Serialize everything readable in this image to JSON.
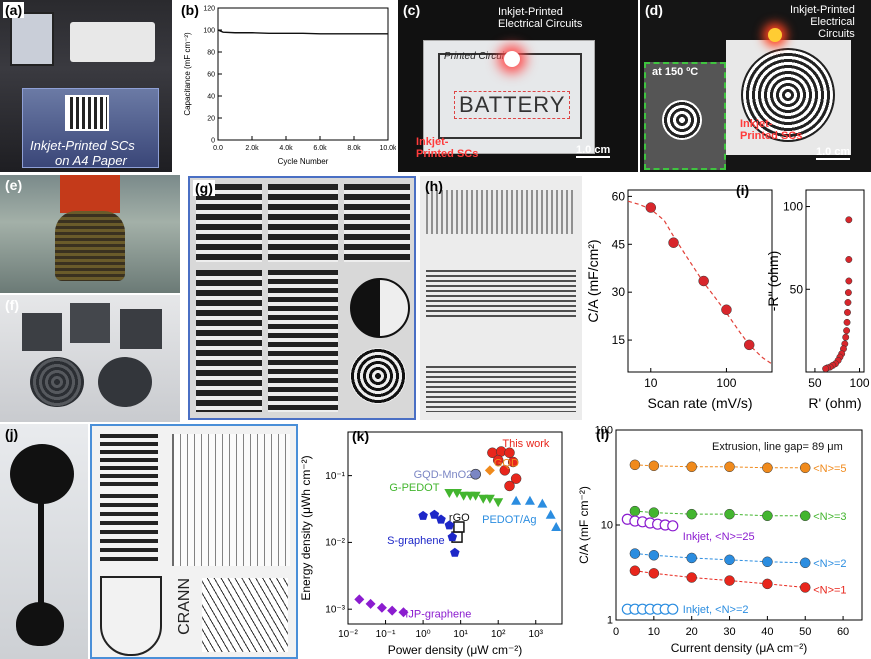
{
  "labels": {
    "a": "(a)",
    "b": "(b)",
    "c": "(c)",
    "d": "(d)",
    "e": "(e)",
    "f": "(f)",
    "g": "(g)",
    "h": "(h)",
    "i": "(i)",
    "j": "(j)",
    "k": "(k)",
    "l": "(l)"
  },
  "panel_a": {
    "caption_line1": "Inkjet-Printed SCs",
    "caption_line2": "on A4 Paper"
  },
  "panel_c": {
    "circuit_label": "Inkjet-Printed\nElectrical Circuits",
    "sc_label": "Inkjet-\nPrinted SCs",
    "battery_text": "BATTERY",
    "printed_circuit_text": "Printed Circuit",
    "scale": "1.0 cm"
  },
  "panel_d": {
    "circuit_label": "Inkjet-Printed\nElectrical\nCircuits",
    "temp_label": "at 150 ºC",
    "sc_label": "Inkjet-\nPrinted SCs",
    "scale": "1.0 cm"
  },
  "panel_j": {
    "crann": "CRANN"
  },
  "chart_data": [
    {
      "id": "b",
      "type": "line",
      "xlabel": "Cycle Number",
      "ylabel": "Capacitance (mF cm⁻²)",
      "xlim": [
        0,
        10000
      ],
      "ylim": [
        0,
        120
      ],
      "xticks": [
        0,
        2000,
        4000,
        6000,
        8000,
        10000
      ],
      "xtick_labels": [
        "0.0",
        "2.0k",
        "4.0k",
        "6.0k",
        "8.0k",
        "10.0k"
      ],
      "yticks": [
        0,
        20,
        40,
        60,
        80,
        100,
        120
      ],
      "ytick_labels": [
        "0",
        "20",
        "40",
        "60",
        "80",
        "100",
        "120"
      ],
      "series": [
        {
          "x": [
            0,
            300,
            1000,
            2000,
            3000,
            4000,
            5000,
            6000,
            7000,
            8000,
            9000,
            10000
          ],
          "y": [
            100,
            98,
            97.5,
            97.5,
            97,
            97,
            97,
            96.5,
            96.5,
            96.5,
            96.5,
            96.5
          ]
        }
      ]
    },
    {
      "id": "i_left",
      "type": "scatter",
      "xlabel": "Scan rate (mV/s)",
      "ylabel": "C/A (mF/cm²)",
      "xscale": "log",
      "xlim": [
        5,
        400
      ],
      "ylim": [
        5,
        62
      ],
      "xticks": [
        10,
        100
      ],
      "xtick_labels": [
        "10",
        "100"
      ],
      "yticks": [
        15,
        30,
        45,
        60
      ],
      "ytick_labels": [
        "15",
        "30",
        "45",
        "60"
      ],
      "series": [
        {
          "x": [
            10,
            20,
            50,
            100,
            200
          ],
          "y": [
            56.5,
            45.5,
            33.5,
            24.5,
            13.5
          ]
        }
      ],
      "fit": {
        "x": [
          5,
          7,
          10,
          15,
          20,
          30,
          50,
          70,
          100,
          150,
          200,
          300,
          400
        ],
        "y": [
          58.5,
          57.5,
          56,
          52.5,
          47.5,
          41,
          33,
          28.5,
          23.5,
          17.5,
          13.5,
          9.5,
          7.5
        ]
      }
    },
    {
      "id": "i_right",
      "type": "scatter",
      "xlabel": "R' (ohm)",
      "ylabel": "-R'' (ohm)",
      "xlim": [
        40,
        105
      ],
      "ylim": [
        0,
        110
      ],
      "xticks": [
        50,
        100
      ],
      "xtick_labels": [
        "50",
        "100"
      ],
      "yticks": [
        50,
        100
      ],
      "ytick_labels": [
        "50",
        "100"
      ],
      "series": [
        {
          "x": [
            88,
            88,
            88,
            87.5,
            87,
            86.5,
            86,
            85.5,
            84.5,
            83.5,
            82,
            80,
            78,
            76,
            73,
            70,
            67,
            64,
            62
          ],
          "y": [
            92,
            68,
            55,
            48,
            42,
            36,
            30,
            25,
            21,
            17,
            14,
            11,
            9,
            7,
            5,
            4,
            3,
            2.5,
            2
          ]
        }
      ]
    },
    {
      "id": "k",
      "type": "scatter",
      "xlabel": "Power density (μW cm⁻²)",
      "ylabel": "Energy density (μWh cm⁻²)",
      "xscale": "log",
      "yscale": "log",
      "xlim": [
        0.01,
        5000
      ],
      "ylim": [
        0.0006,
        0.45
      ],
      "xticks": [
        0.01,
        0.1,
        1,
        10,
        100,
        1000
      ],
      "xtick_labels": [
        "10⁻²",
        "10⁻¹",
        "10⁰",
        "10¹",
        "10²",
        "10³"
      ],
      "yticks": [
        0.001,
        0.01,
        0.1
      ],
      "ytick_labels": [
        "10⁻³",
        "10⁻²",
        "10⁻¹"
      ],
      "series": [
        {
          "name": "This work",
          "color": "#e8261c",
          "marker": "circle",
          "x": [
            70,
            120,
            200,
            100,
            250,
            150,
            300,
            200
          ],
          "y": [
            0.22,
            0.23,
            0.22,
            0.17,
            0.16,
            0.12,
            0.09,
            0.07
          ]
        },
        {
          "name": "GQD-MnO2",
          "color": "#7b86c4",
          "marker": "half-circle",
          "x": [
            25
          ],
          "y": [
            0.105
          ]
        },
        {
          "name": "GQD",
          "color": "#f08a1c",
          "marker": "diamond",
          "x": [
            60
          ],
          "y": [
            0.12
          ]
        },
        {
          "name": "G-PEDOT",
          "color": "#43b52f",
          "marker": "triangle-down",
          "x": [
            5,
            8,
            12,
            18,
            25,
            40,
            60,
            100
          ],
          "y": [
            0.055,
            0.055,
            0.05,
            0.05,
            0.05,
            0.045,
            0.045,
            0.04
          ]
        },
        {
          "name": "PEDOT/Ag",
          "color": "#2b8de0",
          "marker": "triangle",
          "x": [
            300,
            700,
            1500,
            2500,
            3500
          ],
          "y": [
            0.042,
            0.042,
            0.038,
            0.026,
            0.017
          ]
        },
        {
          "name": "rGO",
          "color": "#111111",
          "marker": "square-open",
          "x": [
            9,
            8
          ],
          "y": [
            0.017,
            0.012
          ]
        },
        {
          "name": "S-graphene",
          "color": "#1d27c8",
          "marker": "pentagon",
          "x": [
            1,
            2,
            3,
            5,
            6,
            7
          ],
          "y": [
            0.025,
            0.026,
            0.022,
            0.018,
            0.012,
            0.007
          ]
        },
        {
          "name": "IJP-graphene",
          "color": "#8b1ccf",
          "marker": "diamond",
          "x": [
            0.02,
            0.04,
            0.08,
            0.15,
            0.3
          ],
          "y": [
            0.0014,
            0.0012,
            0.00105,
            0.00095,
            0.0009
          ]
        }
      ],
      "annotations": [
        "This work",
        "GQD-MnO2",
        "GQD",
        "G-PEDOT",
        "rGO",
        "PEDOT/Ag",
        "S-graphene",
        "IJP-graphene"
      ]
    },
    {
      "id": "l",
      "type": "scatter",
      "title": "Extrusion, line gap= 89 μm",
      "xlabel": "Current density (μA cm⁻²)",
      "ylabel": "C/A (mF cm⁻²)",
      "yscale": "log",
      "xlim": [
        0,
        65
      ],
      "ylim": [
        1,
        100
      ],
      "xticks": [
        0,
        10,
        20,
        30,
        40,
        50,
        60
      ],
      "xtick_labels": [
        "0",
        "10",
        "20",
        "30",
        "40",
        "50",
        "60"
      ],
      "yticks": [
        1,
        10,
        100
      ],
      "ytick_labels": [
        "1",
        "10",
        "100"
      ],
      "series": [
        {
          "name": "<N>=5",
          "color": "#f08a1c",
          "marker": "circle",
          "x": [
            5,
            10,
            20,
            30,
            40,
            50
          ],
          "y": [
            43,
            42,
            41,
            41,
            40,
            40
          ]
        },
        {
          "name": "<N>=3",
          "color": "#43b52f",
          "marker": "circle",
          "x": [
            5,
            10,
            20,
            30,
            40,
            50
          ],
          "y": [
            14,
            13.5,
            13,
            13,
            12.5,
            12.5
          ]
        },
        {
          "name": "Inkjet, <N>=25",
          "color": "#8b1ccf",
          "marker": "circle-open",
          "x": [
            3,
            5,
            7,
            9,
            11,
            13,
            15
          ],
          "y": [
            11.5,
            11,
            10.8,
            10.5,
            10.2,
            10,
            9.8
          ]
        },
        {
          "name": "<N>=2",
          "color": "#2b8de0",
          "marker": "circle",
          "x": [
            5,
            10,
            20,
            30,
            40,
            50
          ],
          "y": [
            5,
            4.8,
            4.5,
            4.3,
            4.1,
            4
          ]
        },
        {
          "name": "<N>=1",
          "color": "#e8261c",
          "marker": "circle",
          "x": [
            5,
            10,
            20,
            30,
            40,
            50
          ],
          "y": [
            3.3,
            3.1,
            2.8,
            2.6,
            2.4,
            2.2
          ]
        },
        {
          "name": "Inkjet, <N>=2",
          "color": "#2b8de0",
          "marker": "circle-open",
          "x": [
            3,
            5,
            7,
            9,
            11,
            13,
            15
          ],
          "y": [
            1.3,
            1.3,
            1.3,
            1.3,
            1.3,
            1.3,
            1.3
          ]
        }
      ]
    }
  ]
}
